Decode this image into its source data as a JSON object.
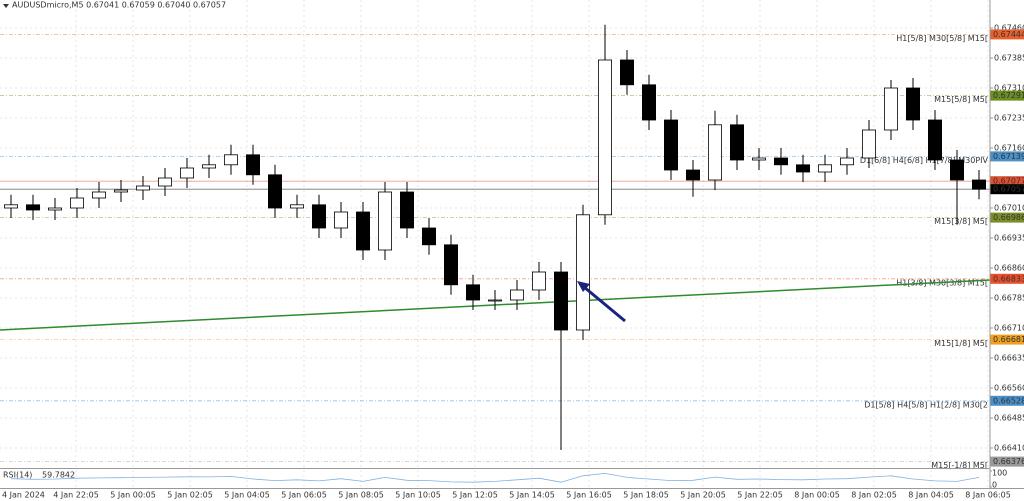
{
  "chart_data": {
    "type": "candlestick",
    "title": "AUDUSDmicro,M5  0.67041 0.67059 0.67040 0.67057",
    "x_labels": [
      "4 Jan 2024",
      "4 Jan 22:05",
      "5 Jan 00:05",
      "5 Jan 02:05",
      "5 Jan 04:05",
      "5 Jan 06:05",
      "5 Jan 08:05",
      "5 Jan 10:05",
      "5 Jan 12:05",
      "5 Jan 14:05",
      "5 Jan 16:05",
      "5 Jan 18:05",
      "5 Jan 20:05",
      "5 Jan 22:05",
      "8 Jan 00:05",
      "8 Jan 02:05",
      "8 Jan 04:05",
      "8 Jan 06:05"
    ],
    "open": [
      0.6701,
      0.67018,
      0.67005,
      0.6701,
      0.67035,
      0.6705,
      0.67055,
      0.67065,
      0.67085,
      0.6711,
      0.67118,
      0.67143,
      0.67093,
      0.6701,
      0.67018,
      0.6696,
      0.67,
      0.66905,
      0.6705,
      0.6696,
      0.66918,
      0.66818,
      0.6678,
      0.6678,
      0.66805,
      0.6685,
      0.66705,
      0.66993,
      0.6738,
      0.67318,
      0.6723,
      0.67105,
      0.6708,
      0.67218,
      0.6713,
      0.67135,
      0.67118,
      0.671,
      0.67118,
      0.67135,
      0.67205,
      0.6731,
      0.6723,
      0.6713,
      0.6708
    ],
    "high": [
      0.67043,
      0.67043,
      0.67035,
      0.6706,
      0.67075,
      0.6708,
      0.6709,
      0.6711,
      0.67135,
      0.67143,
      0.67168,
      0.67168,
      0.67118,
      0.67043,
      0.67043,
      0.67025,
      0.67025,
      0.67075,
      0.67075,
      0.66985,
      0.66943,
      0.66843,
      0.66805,
      0.6683,
      0.66875,
      0.66875,
      0.67018,
      0.67468,
      0.67405,
      0.67343,
      0.67255,
      0.6713,
      0.67253,
      0.67243,
      0.6716,
      0.6716,
      0.67143,
      0.67143,
      0.6716,
      0.6723,
      0.6733,
      0.67335,
      0.67255,
      0.67155,
      0.67105
    ],
    "low": [
      0.66985,
      0.6698,
      0.6698,
      0.66985,
      0.6701,
      0.67025,
      0.6703,
      0.6704,
      0.6706,
      0.67085,
      0.67093,
      0.67068,
      0.66985,
      0.66985,
      0.66935,
      0.66935,
      0.6688,
      0.6688,
      0.66935,
      0.66893,
      0.66793,
      0.66755,
      0.66755,
      0.66755,
      0.6678,
      0.66405,
      0.6668,
      0.66968,
      0.67293,
      0.67205,
      0.6708,
      0.67038,
      0.67055,
      0.67105,
      0.67105,
      0.67093,
      0.67075,
      0.67075,
      0.67093,
      0.6711,
      0.6718,
      0.67205,
      0.67105,
      0.66968,
      0.67032
    ],
    "close": [
      0.67018,
      0.67005,
      0.6701,
      0.67035,
      0.6705,
      0.67055,
      0.67065,
      0.67085,
      0.6711,
      0.67118,
      0.67143,
      0.67093,
      0.6701,
      0.67018,
      0.6696,
      0.67,
      0.66905,
      0.6705,
      0.6696,
      0.66918,
      0.66818,
      0.6678,
      0.6678,
      0.66805,
      0.6685,
      0.66705,
      0.66993,
      0.6738,
      0.67318,
      0.6723,
      0.67105,
      0.6708,
      0.67218,
      0.6713,
      0.67135,
      0.67118,
      0.671,
      0.67118,
      0.67135,
      0.67205,
      0.6731,
      0.6723,
      0.6713,
      0.6708,
      0.67057
    ],
    "up_color": "#ffffff",
    "down_color": "#000000",
    "ylim": [
      0.6636,
      0.6753
    ],
    "yticks": [
      {
        "value": 0.6746,
        "label": "0.67460"
      },
      0.67385,
      {
        "value": 0.6731,
        "label": "0.67310"
      },
      0.67235,
      {
        "value": 0.6716,
        "label": "0.67160"
      },
      {
        "value": 0.6701,
        "label": "0.67010"
      },
      0.66935,
      {
        "value": 0.6686,
        "label": "0.66860"
      },
      0.66785,
      {
        "value": 0.6671,
        "label": "0.66710"
      },
      0.66635,
      {
        "value": 0.6656,
        "label": "0.66560"
      },
      0.66485,
      {
        "value": 0.6641,
        "label": "0.66410"
      }
    ],
    "grid": true,
    "levels": [
      {
        "label": "H1[5/8] M30[5/8] M15[",
        "value": 0.67444,
        "color": "#e8602c"
      },
      {
        "label": "M15[5/8] M5[",
        "value": 0.67291,
        "color": "#6b8e23"
      },
      {
        "label": "D1[6/8] H4[6/8] H1[7/8] M30PIV",
        "value": 0.67139,
        "color": "#4a90c8"
      },
      {
        "value": 0.67077,
        "color": "#e05030"
      },
      {
        "value": 0.67057,
        "color": "#000000"
      },
      {
        "label": "M15[3/8] M5[",
        "value": 0.66986,
        "color": "#7a8f2a"
      },
      {
        "label": "H1[3/8] M30[3/8] M15[",
        "value": 0.66833,
        "color": "#e8502c"
      },
      {
        "label": "M15[1/8] M5[",
        "value": 0.66681,
        "color": "#f0a020"
      },
      {
        "label": "D1[5/8] H4[5/8] H1[2/8] M30[2",
        "value": 0.66528,
        "color": "#4a90c8"
      },
      {
        "label": "M15[-1/8] M5[",
        "value": 0.66376,
        "color": "#999999"
      }
    ],
    "trendline": {
      "values": [
        0.66705,
        0.6683
      ],
      "color": "#2e8b2e"
    },
    "rsi": {
      "label": "RSI(14)",
      "value": 59.7842,
      "color": "#7fb2e0",
      "ylim": [
        0,
        100
      ],
      "yticks": [
        100,
        0
      ],
      "values": [
        52,
        48,
        50,
        55,
        57,
        58,
        60,
        62,
        64,
        63,
        66,
        50,
        40,
        45,
        38,
        52,
        35,
        60,
        42,
        40,
        32,
        30,
        35,
        45,
        55,
        30,
        70,
        85,
        60,
        50,
        40,
        42,
        62,
        48,
        50,
        46,
        45,
        50,
        52,
        62,
        70,
        50,
        38,
        35,
        59.7842
      ]
    }
  }
}
